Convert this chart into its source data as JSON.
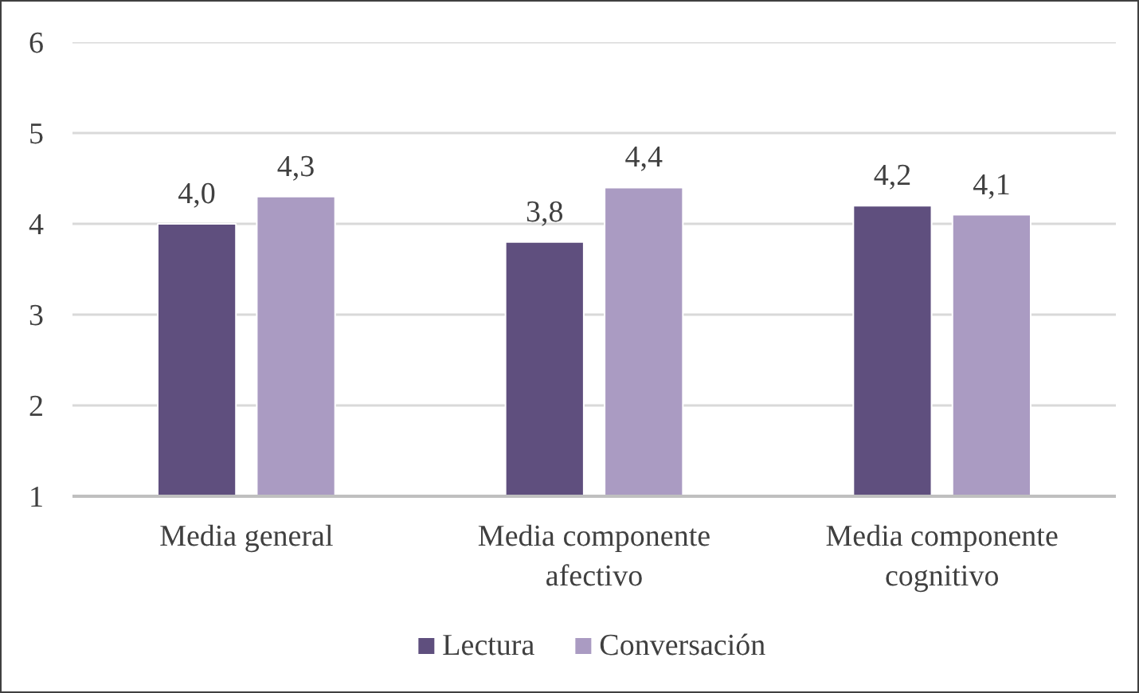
{
  "chart_data": {
    "type": "bar",
    "categories": [
      "Media general",
      "Media componente afectivo",
      "Media componente cognitivo"
    ],
    "series": [
      {
        "name": "Lectura",
        "color": "#5f4f7e",
        "values": [
          4.0,
          3.8,
          4.2
        ],
        "value_labels": [
          "4,0",
          "3,8",
          "4,2"
        ]
      },
      {
        "name": "Conversación",
        "color": "#aa9bc2",
        "values": [
          4.3,
          4.4,
          4.1
        ],
        "value_labels": [
          "4,3",
          "4,4",
          "4,1"
        ]
      }
    ],
    "ylim": [
      1,
      6
    ],
    "yticks": [
      1,
      2,
      3,
      4,
      5,
      6
    ],
    "grid": "y",
    "legend": "bottom"
  }
}
